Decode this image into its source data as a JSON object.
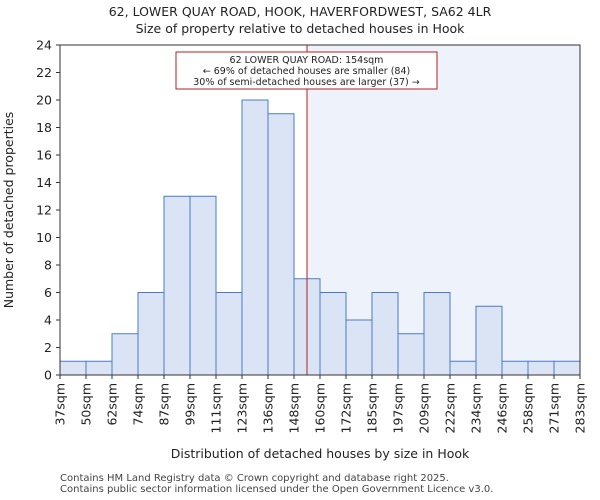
{
  "chart_data": {
    "type": "bar",
    "title": "62, LOWER QUAY ROAD, HOOK, HAVERFORDWEST, SA62 4LR",
    "subtitle": "Size of property relative to detached houses in Hook",
    "xlabel": "Distribution of detached houses by size in Hook",
    "ylabel": "Number of detached properties",
    "x_tick_labels": [
      "37sqm",
      "50sqm",
      "62sqm",
      "74sqm",
      "87sqm",
      "99sqm",
      "111sqm",
      "123sqm",
      "136sqm",
      "148sqm",
      "160sqm",
      "172sqm",
      "185sqm",
      "197sqm",
      "209sqm",
      "222sqm",
      "234sqm",
      "246sqm",
      "258sqm",
      "271sqm",
      "283sqm"
    ],
    "values": [
      1,
      1,
      3,
      6,
      13,
      13,
      6,
      20,
      19,
      7,
      6,
      4,
      6,
      3,
      6,
      1,
      5,
      1,
      1,
      1
    ],
    "ylim": [
      0,
      24
    ],
    "yticks": [
      0,
      2,
      4,
      6,
      8,
      10,
      12,
      14,
      16,
      18,
      20,
      22,
      24
    ],
    "marker_value": 154,
    "marker_unit": "sqm",
    "annotation": [
      "62 LOWER QUAY ROAD: 154sqm",
      "← 69% of detached houses are smaller (84)",
      "30% of semi-detached houses are larger (37) →"
    ],
    "colors": {
      "bar_fill": "#dae4f4",
      "bar_edge": "#4a7bc8",
      "marker_line": "#b22222",
      "shade": "#eef2fa",
      "axis": "#333333"
    },
    "grid": false
  },
  "footer": {
    "line1": "Contains HM Land Registry data © Crown copyright and database right 2025.",
    "line2": "Contains public sector information licensed under the Open Government Licence v3.0."
  }
}
